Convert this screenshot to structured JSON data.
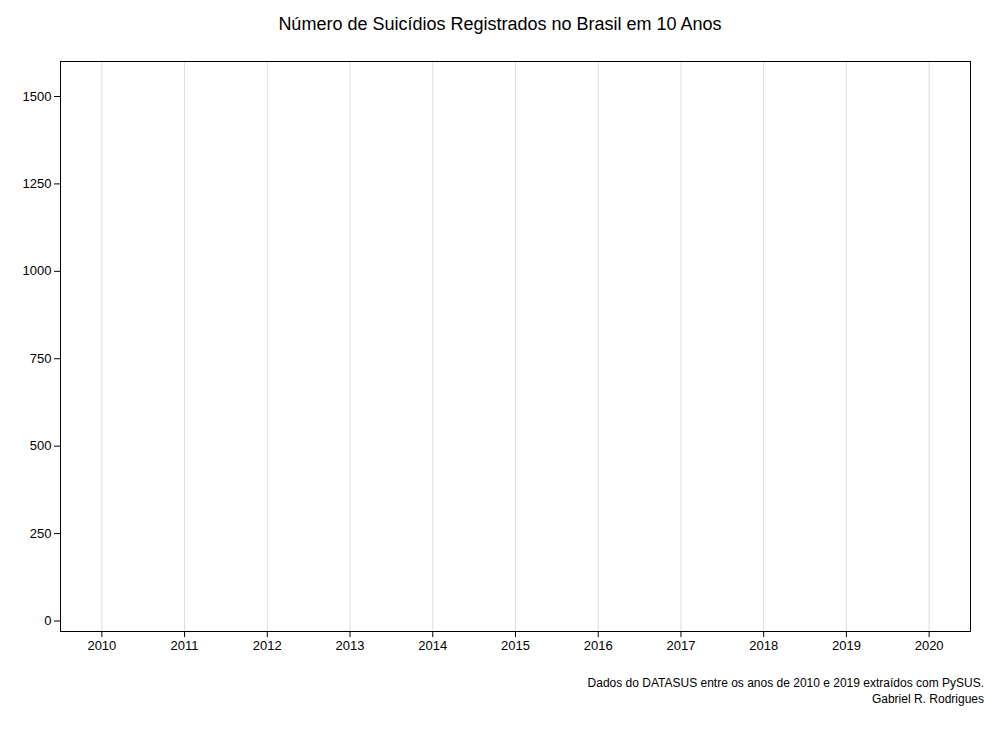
{
  "chart_data": {
    "type": "line",
    "title": "Número de Suicídios Registrados no Brasil em 10 Anos",
    "x": [],
    "series": [],
    "xlim": [
      2009.5,
      2020.5
    ],
    "ylim": [
      -30,
      1600
    ],
    "xticks": [
      2010,
      2011,
      2012,
      2013,
      2014,
      2015,
      2016,
      2017,
      2018,
      2019,
      2020
    ],
    "yticks": [
      0,
      250,
      500,
      750,
      1000,
      1250,
      1500
    ],
    "grid": "x",
    "annotations": [
      "Dados do DATASUS entre os anos de 2010 e 2019 extraídos com PySUS.",
      "Gabriel R. Rodrigues"
    ]
  }
}
